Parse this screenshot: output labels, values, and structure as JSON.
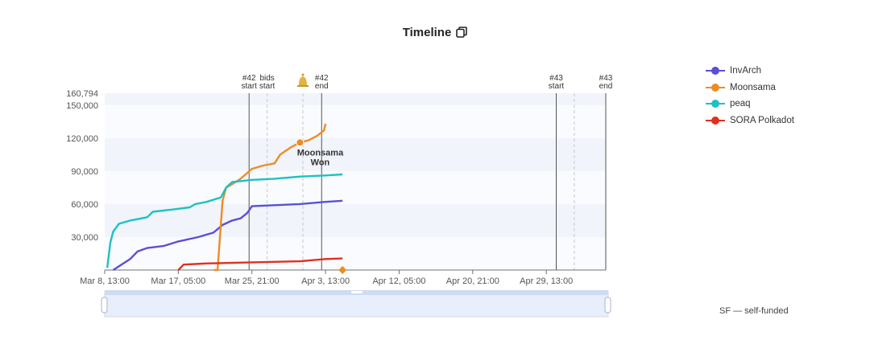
{
  "header": {
    "title": "Timeline"
  },
  "chart_data": {
    "type": "line",
    "title": "Timeline",
    "xlabel": "",
    "ylabel": "",
    "x_ticks": [
      "Mar 8, 13:00",
      "Mar 17, 05:00",
      "Mar 25, 21:00",
      "Apr 3, 13:00",
      "Apr 12, 05:00",
      "Apr 20, 21:00",
      "Apr 29, 13:00"
    ],
    "y_ticks": [
      30000,
      60000,
      90000,
      120000,
      150000,
      160794
    ],
    "y_tick_labels": [
      "30,000",
      "60,000",
      "90,000",
      "120,000",
      "150,000",
      "160,794"
    ],
    "ylim": [
      0,
      160794
    ],
    "xlim": [
      "Mar 8, 13:00",
      "May 6, 13:00"
    ],
    "grid": "horizontal bands",
    "legend_position": "right",
    "series": [
      {
        "name": "InvArch",
        "color": "#5b4fd6",
        "points": [
          [
            "Mar 9, 13:00",
            0
          ],
          [
            "Mar 10, 08:00",
            4000
          ],
          [
            "Mar 11, 13:00",
            10000
          ],
          [
            "Mar 12, 10:00",
            17000
          ],
          [
            "Mar 13, 13:00",
            20000
          ],
          [
            "Mar 15, 13:00",
            22000
          ],
          [
            "Mar 17, 05:00",
            26000
          ],
          [
            "Mar 19, 13:00",
            30000
          ],
          [
            "Mar 21, 08:00",
            34000
          ],
          [
            "Mar 22, 10:00",
            41000
          ],
          [
            "Mar 23, 13:00",
            45000
          ],
          [
            "Mar 24, 13:00",
            47000
          ],
          [
            "Mar 25, 08:00",
            52000
          ],
          [
            "Mar 25, 21:00",
            58000
          ],
          [
            "Mar 28, 13:00",
            59000
          ],
          [
            "Mar 31, 13:00",
            60000
          ],
          [
            "Apr 3, 13:00",
            62000
          ],
          [
            "Apr 5, 13:00",
            63000
          ]
        ]
      },
      {
        "name": "Moonsama",
        "color": "#ea8d25",
        "points": [
          [
            "Mar 21, 10:00",
            0
          ],
          [
            "Mar 21, 20:00",
            0
          ],
          [
            "Mar 22, 10:00",
            63000
          ],
          [
            "Mar 22, 20:00",
            75000
          ],
          [
            "Mar 23, 13:00",
            78000
          ],
          [
            "Mar 24, 13:00",
            83000
          ],
          [
            "Mar 25, 21:00",
            92000
          ],
          [
            "Mar 27, 05:00",
            95000
          ],
          [
            "Mar 28, 13:00",
            97000
          ],
          [
            "Mar 29, 05:00",
            105000
          ],
          [
            "Mar 30, 13:00",
            112000
          ],
          [
            "Mar 31, 13:00",
            116000
          ],
          [
            "Apr 1, 13:00",
            118000
          ],
          [
            "Apr 2, 13:00",
            122000
          ],
          [
            "Apr 3, 09:00",
            127000
          ],
          [
            "Apr 3, 13:00",
            133000
          ]
        ]
      },
      {
        "name": "peaq",
        "color": "#1ec1c4",
        "points": [
          [
            "Mar 8, 20:00",
            2000
          ],
          [
            "Mar 9, 05:00",
            25000
          ],
          [
            "Mar 9, 13:00",
            35000
          ],
          [
            "Mar 10, 05:00",
            42000
          ],
          [
            "Mar 11, 13:00",
            45000
          ],
          [
            "Mar 13, 13:00",
            48000
          ],
          [
            "Mar 14, 05:00",
            53000
          ],
          [
            "Mar 16, 13:00",
            55000
          ],
          [
            "Mar 18, 13:00",
            57000
          ],
          [
            "Mar 19, 05:00",
            60000
          ],
          [
            "Mar 20, 13:00",
            62000
          ],
          [
            "Mar 22, 05:00",
            66000
          ],
          [
            "Mar 22, 20:00",
            75000
          ],
          [
            "Mar 23, 13:00",
            80000
          ],
          [
            "Mar 25, 21:00",
            82000
          ],
          [
            "Mar 28, 13:00",
            83000
          ],
          [
            "Mar 31, 13:00",
            85000
          ],
          [
            "Apr 3, 13:00",
            86000
          ],
          [
            "Apr 5, 13:00",
            87000
          ]
        ]
      },
      {
        "name": "SORA Polkadot",
        "color": "#e0301e",
        "points": [
          [
            "Mar 17, 05:00",
            0
          ],
          [
            "Mar 17, 20:00",
            5000
          ],
          [
            "Mar 20, 13:00",
            6000
          ],
          [
            "Mar 25, 21:00",
            7000
          ],
          [
            "Mar 31, 13:00",
            8000
          ],
          [
            "Apr 3, 13:00",
            10000
          ],
          [
            "Apr 5, 13:00",
            10500
          ]
        ]
      }
    ],
    "event_markers": [
      {
        "label_lines": [
          "#42",
          "start"
        ],
        "date": "Mar 25, 13:00",
        "style": "solid"
      },
      {
        "label_lines": [
          "bids",
          "start"
        ],
        "date": "Mar 27, 16:00",
        "style": "dashed"
      },
      {
        "label_lines": [
          "🔔"
        ],
        "date": "Mar 31, 21:00",
        "style": "dashed",
        "icon": "bell-icon"
      },
      {
        "label_lines": [
          "#42",
          "end"
        ],
        "date": "Apr 3, 02:00",
        "style": "solid"
      },
      {
        "label_lines": [
          "#43",
          "start"
        ],
        "date": "Apr 30, 17:00",
        "style": "solid"
      },
      {
        "label_lines": [],
        "date": "May 2, 20:00",
        "style": "dashed"
      },
      {
        "label_lines": [
          "#43",
          "end"
        ],
        "date": "May 6, 13:00",
        "style": "solid"
      }
    ],
    "annotations": [
      {
        "series": "Moonsama",
        "date": "Mar 31, 13:00",
        "value": 116000,
        "text_lines": [
          "Moonsama",
          "Won"
        ],
        "marker": "filled-circle"
      },
      {
        "series": "Moonsama",
        "date": "Apr 5, 13:00",
        "value": 0,
        "text_lines": [],
        "marker": "orange-diamond"
      }
    ]
  },
  "legend": [
    {
      "label": "InvArch",
      "color": "#5b4fd6"
    },
    {
      "label": "Moonsama",
      "color": "#ea8d25"
    },
    {
      "label": "peaq",
      "color": "#1ec1c4"
    },
    {
      "label": "SORA Polkadot",
      "color": "#e0301e"
    }
  ],
  "footnote": "SF — self-funded",
  "icons": {
    "copy": "copy-icon",
    "bell": "bell-icon"
  }
}
